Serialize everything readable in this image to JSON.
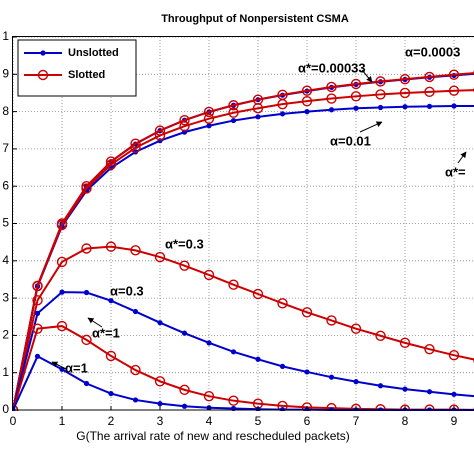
{
  "chart_data": {
    "type": "line",
    "title": "Throughput of Nonpersistent CSMA",
    "x_label": "G(The arrival rate of new and rescheduled packets)",
    "x": [
      0,
      0.5,
      1,
      1.5,
      2,
      2.5,
      3,
      3.5,
      4,
      4.5,
      5,
      5.5,
      6,
      6.5,
      7,
      7.5,
      8,
      8.5,
      9,
      9.5
    ],
    "series": [
      {
        "name": "Unslotted",
        "color": "#0000cc",
        "marker": "dot",
        "values": [
          0,
          3.33,
          4.99,
          5.99,
          6.66,
          7.13,
          7.49,
          7.77,
          7.99,
          8.17,
          8.32,
          8.44,
          8.55,
          8.65,
          8.73,
          8.8,
          8.86,
          8.92,
          8.97,
          9.02
        ]
      },
      {
        "name": "Slotted",
        "color": "#cc0000",
        "marker": "circle",
        "values": [
          0,
          3.33,
          5.0,
          6.0,
          6.66,
          7.14,
          7.49,
          7.77,
          7.99,
          8.17,
          8.32,
          8.45,
          8.56,
          8.66,
          8.74,
          8.81,
          8.87,
          8.93,
          8.99,
          9.04
        ]
      },
      {
        "name": "Unslotted",
        "color": "#0000cc",
        "marker": "dot",
        "values": [
          0,
          3.31,
          4.93,
          5.88,
          6.49,
          6.92,
          7.22,
          7.45,
          7.62,
          7.76,
          7.86,
          7.94,
          8.0,
          8.05,
          8.09,
          8.11,
          8.13,
          8.14,
          8.15,
          8.15
        ]
      },
      {
        "name": "Slotted",
        "color": "#cc0000",
        "marker": "circle",
        "values": [
          0,
          3.32,
          4.96,
          5.94,
          6.58,
          7.03,
          7.36,
          7.61,
          7.81,
          7.97,
          8.09,
          8.2,
          8.28,
          8.35,
          8.41,
          8.46,
          8.5,
          8.53,
          8.56,
          8.58
        ]
      },
      {
        "name": "Slotted",
        "color": "#cc0000",
        "marker": "circle",
        "values": [
          0,
          2.94,
          3.97,
          4.33,
          4.38,
          4.28,
          4.1,
          3.87,
          3.62,
          3.36,
          3.11,
          2.86,
          2.62,
          2.4,
          2.18,
          1.99,
          1.8,
          1.63,
          1.47,
          1.33
        ]
      },
      {
        "name": "Unslotted",
        "color": "#0000cc",
        "marker": "dot",
        "values": [
          0,
          2.59,
          3.16,
          3.15,
          2.93,
          2.64,
          2.34,
          2.06,
          1.8,
          1.56,
          1.36,
          1.17,
          1.02,
          0.88,
          0.76,
          0.65,
          0.56,
          0.49,
          0.42,
          0.36
        ]
      },
      {
        "name": "Slotted",
        "color": "#cc0000",
        "marker": "circle",
        "values": [
          0,
          2.18,
          2.25,
          1.88,
          1.45,
          1.07,
          0.77,
          0.54,
          0.37,
          0.25,
          0.17,
          0.11,
          0.07,
          0.05,
          0.03,
          0.02,
          0.01,
          0.01,
          0.01,
          0
        ]
      },
      {
        "name": "Unslotted",
        "color": "#0000cc",
        "marker": "dot",
        "values": [
          0,
          1.44,
          1.09,
          0.71,
          0.44,
          0.27,
          0.17,
          0.1,
          0.06,
          0.04,
          0.02,
          0.01,
          0.01,
          0,
          0,
          0,
          0,
          0,
          0,
          0
        ]
      }
    ],
    "annotations": [
      "α=0.0003",
      "α*=0.00033",
      "α=0.01",
      "α*=",
      "α*=0.3",
      "α=0.3",
      "α*=1",
      "α=1"
    ],
    "xlim": [
      0,
      10
    ],
    "xticks": [
      0,
      1,
      2,
      3,
      4,
      5,
      6,
      7,
      8,
      9
    ],
    "ylim": [
      0,
      10
    ],
    "yticks": [
      0,
      1,
      2,
      3,
      4,
      5,
      6,
      7,
      8,
      9,
      {
        "value": 10,
        "label": "1"
      }
    ],
    "grid": true,
    "legend": "upper left"
  }
}
